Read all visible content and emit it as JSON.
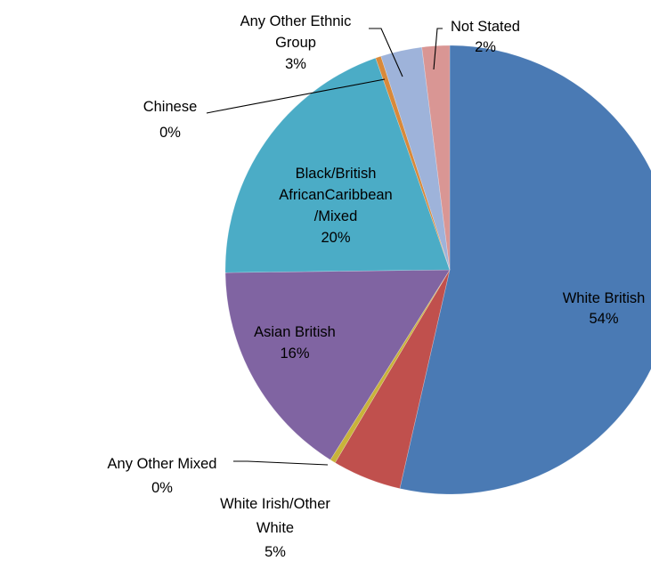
{
  "chart_data": {
    "type": "pie",
    "start_angle_deg": 0,
    "direction": "clockwise",
    "slices": [
      {
        "label": "White British",
        "value": 54,
        "percent_label": "54%",
        "color": "#4a7ab4"
      },
      {
        "label": "White Irish/Other White",
        "value": 5,
        "percent_label": "5%",
        "color": "#c0504d"
      },
      {
        "label": "Any Other Mixed",
        "value": 0.4,
        "percent_label": "0%",
        "color": "#c8b33a"
      },
      {
        "label": "Asian British",
        "value": 16,
        "percent_label": "16%",
        "color": "#8064a2"
      },
      {
        "label": "Black/British AfricanCaribbean /Mixed",
        "value": 20,
        "percent_label": "20%",
        "color": "#4bacc6"
      },
      {
        "label": "Chinese",
        "value": 0.4,
        "percent_label": "0%",
        "color": "#d8893a"
      },
      {
        "label": "Any Other Ethnic Group",
        "value": 3,
        "percent_label": "3%",
        "color": "#9eb3da"
      },
      {
        "label": "Not Stated",
        "value": 2,
        "percent_label": "2%",
        "color": "#d99694"
      }
    ],
    "data_labels": [
      {
        "name": "data-label-white-british",
        "lines": [
          "White British",
          "54%"
        ]
      },
      {
        "name": "data-label-white-irish-other-white",
        "lines": [
          "White Irish/Other",
          "White",
          "5%"
        ]
      },
      {
        "name": "data-label-any-other-mixed",
        "lines": [
          "Any Other Mixed",
          "0%"
        ]
      },
      {
        "name": "data-label-asian-british",
        "lines": [
          "Asian British",
          "16%"
        ]
      },
      {
        "name": "data-label-black-british",
        "lines": [
          "Black/British",
          "AfricanCaribbean",
          "/Mixed",
          "20%"
        ]
      },
      {
        "name": "data-label-chinese",
        "lines": [
          "Chinese",
          "0%"
        ]
      },
      {
        "name": "data-label-any-other-ethnic-group",
        "lines": [
          "Any Other Ethnic",
          "Group",
          "3%"
        ]
      },
      {
        "name": "data-label-not-stated",
        "lines": [
          "Not Stated",
          "2%"
        ]
      }
    ]
  }
}
